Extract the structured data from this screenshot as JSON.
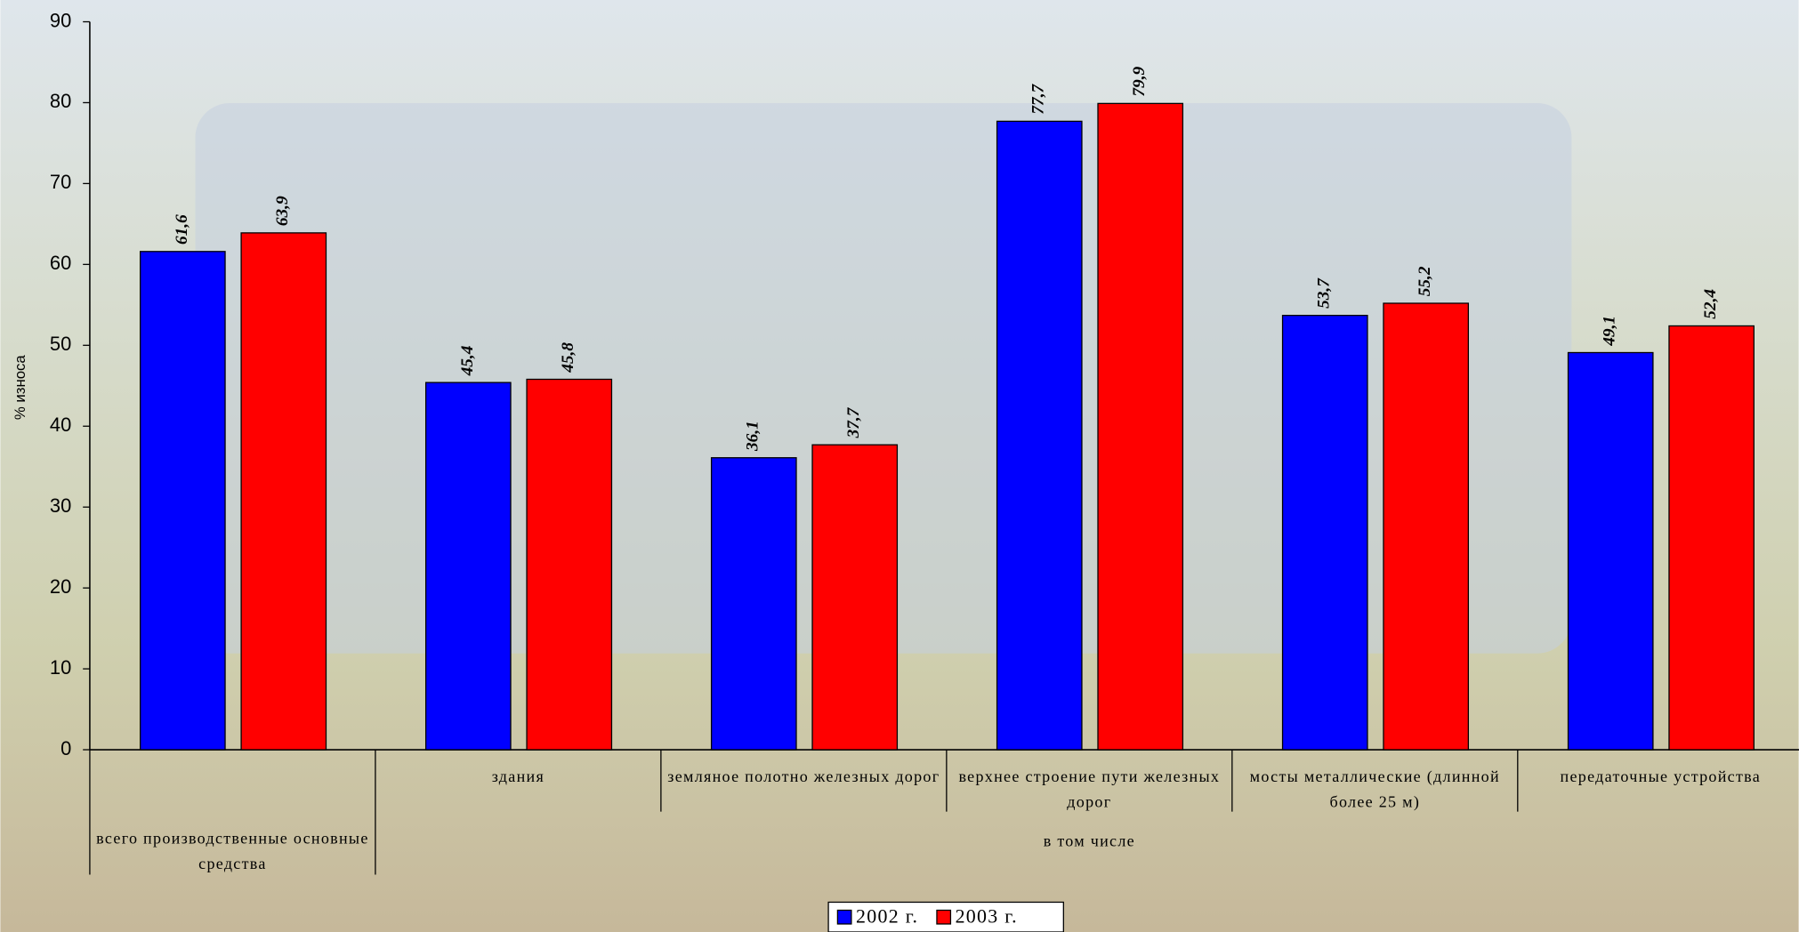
{
  "chart_data": {
    "type": "bar",
    "y_label": "% износа",
    "categories": [
      "всего производственные основные средства",
      "здания",
      "земляное полотно железных дорог",
      "верхнее строение пути железных дорог",
      "мосты металлические (длинной более 25 м)",
      "передаточные устройства"
    ],
    "group_label": "в том числе",
    "series": [
      {
        "name": "2002 г.",
        "color": "#0000ff",
        "values": [
          61.6,
          45.4,
          36.1,
          77.7,
          53.7,
          49.1
        ],
        "value_labels": [
          "61,6",
          "45,4",
          "36,1",
          "77,7",
          "53,7",
          "49,1"
        ]
      },
      {
        "name": "2003 г.",
        "color": "#ff0000",
        "values": [
          63.9,
          45.8,
          37.7,
          79.9,
          55.2,
          52.4
        ],
        "value_labels": [
          "63,9",
          "45,8",
          "37,7",
          "79,9",
          "55,2",
          "52,4"
        ]
      }
    ],
    "ylim": [
      0,
      90
    ],
    "yticks": [
      0,
      10,
      20,
      30,
      40,
      50,
      60,
      70,
      80,
      90
    ],
    "legend": "bottom"
  }
}
